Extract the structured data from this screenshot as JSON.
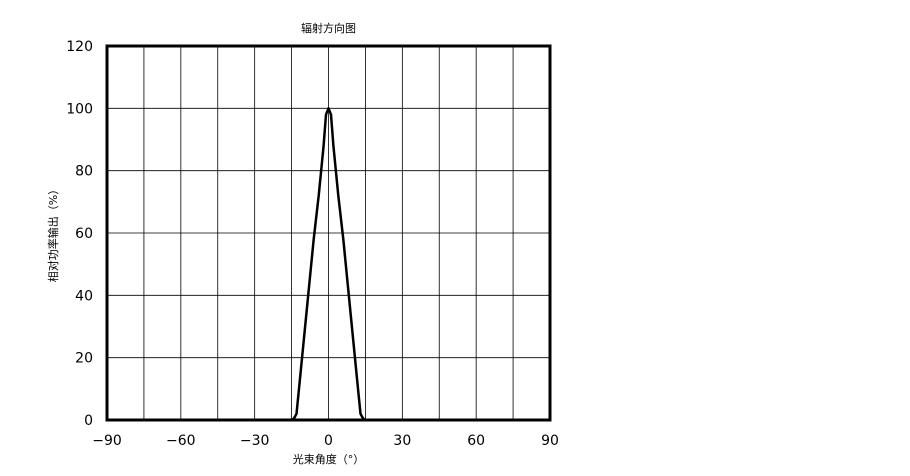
{
  "chart_data": {
    "type": "line",
    "title": "辐射方向图",
    "xlabel": "光束角度（°）",
    "ylabel": "相对功率输出（%）",
    "xlim": [
      -90,
      90
    ],
    "ylim": [
      0,
      120
    ],
    "x_ticks": [
      "−90",
      "−60",
      "−30",
      "0",
      "30",
      "60",
      "90"
    ],
    "y_ticks": [
      "0",
      "20",
      "40",
      "60",
      "80",
      "100",
      "120"
    ],
    "grid": true,
    "legend": "none",
    "line_color": "#000000",
    "series": [
      {
        "x": [
          -90,
          -15,
          -14,
          -13,
          -12,
          -10,
          -8,
          -6,
          -4,
          -2,
          -1,
          0,
          1,
          2,
          4,
          6,
          8,
          10,
          12,
          13,
          14,
          15,
          90
        ],
        "y": [
          0,
          0,
          0.5,
          2,
          10,
          26,
          42,
          58,
          72,
          88,
          98,
          100,
          98,
          88,
          72,
          58,
          42,
          26,
          10,
          2,
          0.5,
          0,
          0
        ]
      }
    ]
  }
}
